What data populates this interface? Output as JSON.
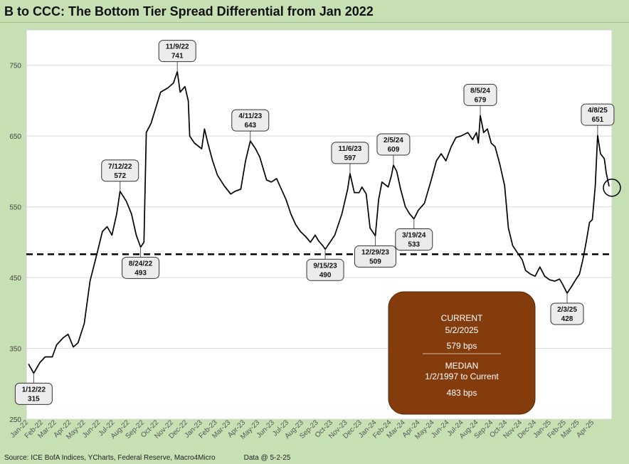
{
  "title": "B to CCC: The Bottom Tier Spread Differential from Jan 2022",
  "source": "Source: ICE BofA Indices, YCharts, Federal Reserve, Macro4Micro",
  "data_asof": "Data @ 5-2-25",
  "colors": {
    "background": "#c6e0b4",
    "plot_background": "#ffffff",
    "line": "#000000",
    "info_box": "#843c0c",
    "callout_fill": "#ececec"
  },
  "info_box": {
    "current_label": "CURRENT",
    "current_date": "5/2/2025",
    "current_value": "579 bps",
    "median_label": "MEDIAN",
    "median_period": "1/2/1997 to Current",
    "median_value": "483 bps"
  },
  "chart_data": {
    "type": "line",
    "title": "B to CCC: The Bottom Tier Spread Differential from Jan 2022",
    "xlabel": "",
    "ylabel": "",
    "ylim": [
      250,
      800
    ],
    "yticks": [
      250,
      350,
      450,
      550,
      650,
      750
    ],
    "grid": true,
    "x_tick_labels": [
      "Jan-22",
      "Feb-22",
      "Mar-22",
      "Apr-22",
      "May-22",
      "Jun-22",
      "Jul-22",
      "Aug-22",
      "Sep-22",
      "Oct-22",
      "Nov-22",
      "Dec-22",
      "Jan-23",
      "Feb-23",
      "Mar-23",
      "Apr-23",
      "May-23",
      "Jun-23",
      "Jul-23",
      "Aug-23",
      "Sep-23",
      "Oct-23",
      "Nov-23",
      "Dec-23",
      "Jan-24",
      "Feb-24",
      "Mar-24",
      "Apr-24",
      "May-24",
      "Jun-24",
      "Jul-24",
      "Aug-24",
      "Sep-24",
      "Oct-24",
      "Nov-24",
      "Dec-24",
      "Jan-25",
      "Feb-25",
      "Mar-25",
      "Apr-25"
    ],
    "median": 483,
    "series": [
      {
        "points": [
          [
            "2022-01-01",
            328
          ],
          [
            "2022-01-12",
            315
          ],
          [
            "2022-01-25",
            330
          ],
          [
            "2022-02-05",
            338
          ],
          [
            "2022-02-20",
            338
          ],
          [
            "2022-03-01",
            355
          ],
          [
            "2022-03-15",
            365
          ],
          [
            "2022-03-25",
            370
          ],
          [
            "2022-04-05",
            352
          ],
          [
            "2022-04-15",
            358
          ],
          [
            "2022-04-28",
            385
          ],
          [
            "2022-05-10",
            445
          ],
          [
            "2022-05-25",
            485
          ],
          [
            "2022-06-05",
            515
          ],
          [
            "2022-06-15",
            522
          ],
          [
            "2022-06-25",
            510
          ],
          [
            "2022-07-05",
            540
          ],
          [
            "2022-07-12",
            572
          ],
          [
            "2022-07-25",
            558
          ],
          [
            "2022-08-05",
            540
          ],
          [
            "2022-08-15",
            510
          ],
          [
            "2022-08-24",
            493
          ],
          [
            "2022-08-31",
            500
          ],
          [
            "2022-09-05",
            655
          ],
          [
            "2022-09-15",
            668
          ],
          [
            "2022-09-25",
            690
          ],
          [
            "2022-10-05",
            712
          ],
          [
            "2022-10-20",
            718
          ],
          [
            "2022-11-01",
            725
          ],
          [
            "2022-11-09",
            741
          ],
          [
            "2022-11-15",
            712
          ],
          [
            "2022-11-25",
            720
          ],
          [
            "2022-12-02",
            700
          ],
          [
            "2022-12-05",
            650
          ],
          [
            "2022-12-15",
            640
          ],
          [
            "2022-12-30",
            632
          ],
          [
            "2023-01-05",
            660
          ],
          [
            "2023-01-12",
            640
          ],
          [
            "2023-01-22",
            615
          ],
          [
            "2023-02-01",
            595
          ],
          [
            "2023-02-15",
            580
          ],
          [
            "2023-03-01",
            568
          ],
          [
            "2023-03-10",
            572
          ],
          [
            "2023-03-22",
            575
          ],
          [
            "2023-04-01",
            615
          ],
          [
            "2023-04-11",
            643
          ],
          [
            "2023-04-22",
            632
          ],
          [
            "2023-05-01",
            620
          ],
          [
            "2023-05-15",
            588
          ],
          [
            "2023-05-25",
            585
          ],
          [
            "2023-06-05",
            590
          ],
          [
            "2023-06-15",
            575
          ],
          [
            "2023-06-25",
            560
          ],
          [
            "2023-07-05",
            540
          ],
          [
            "2023-07-15",
            525
          ],
          [
            "2023-07-25",
            515
          ],
          [
            "2023-08-05",
            508
          ],
          [
            "2023-08-15",
            500
          ],
          [
            "2023-08-25",
            510
          ],
          [
            "2023-09-01",
            502
          ],
          [
            "2023-09-10",
            495
          ],
          [
            "2023-09-15",
            490
          ],
          [
            "2023-09-25",
            500
          ],
          [
            "2023-10-05",
            510
          ],
          [
            "2023-10-20",
            540
          ],
          [
            "2023-11-01",
            575
          ],
          [
            "2023-11-06",
            597
          ],
          [
            "2023-11-15",
            570
          ],
          [
            "2023-11-25",
            570
          ],
          [
            "2023-12-01",
            578
          ],
          [
            "2023-12-10",
            568
          ],
          [
            "2023-12-18",
            520
          ],
          [
            "2023-12-29",
            509
          ],
          [
            "2024-01-05",
            560
          ],
          [
            "2024-01-12",
            585
          ],
          [
            "2024-01-25",
            578
          ],
          [
            "2024-02-01",
            595
          ],
          [
            "2024-02-05",
            609
          ],
          [
            "2024-02-12",
            600
          ],
          [
            "2024-02-20",
            575
          ],
          [
            "2024-03-01",
            550
          ],
          [
            "2024-03-10",
            540
          ],
          [
            "2024-03-19",
            533
          ],
          [
            "2024-03-28",
            545
          ],
          [
            "2024-04-10",
            555
          ],
          [
            "2024-04-25",
            590
          ],
          [
            "2024-05-05",
            615
          ],
          [
            "2024-05-15",
            625
          ],
          [
            "2024-05-25",
            615
          ],
          [
            "2024-06-05",
            635
          ],
          [
            "2024-06-15",
            648
          ],
          [
            "2024-06-25",
            650
          ],
          [
            "2024-07-10",
            655
          ],
          [
            "2024-07-20",
            645
          ],
          [
            "2024-07-28",
            655
          ],
          [
            "2024-08-01",
            640
          ],
          [
            "2024-08-05",
            679
          ],
          [
            "2024-08-12",
            655
          ],
          [
            "2024-08-20",
            660
          ],
          [
            "2024-08-28",
            640
          ],
          [
            "2024-09-05",
            635
          ],
          [
            "2024-09-15",
            610
          ],
          [
            "2024-09-25",
            580
          ],
          [
            "2024-10-03",
            520
          ],
          [
            "2024-10-12",
            495
          ],
          [
            "2024-10-22",
            485
          ],
          [
            "2024-11-01",
            475
          ],
          [
            "2024-11-08",
            460
          ],
          [
            "2024-11-18",
            455
          ],
          [
            "2024-11-28",
            452
          ],
          [
            "2024-12-08",
            465
          ],
          [
            "2024-12-18",
            452
          ],
          [
            "2024-12-28",
            447
          ],
          [
            "2025-01-08",
            445
          ],
          [
            "2025-01-18",
            448
          ],
          [
            "2025-01-25",
            440
          ],
          [
            "2025-02-03",
            428
          ],
          [
            "2025-02-12",
            437
          ],
          [
            "2025-02-22",
            448
          ],
          [
            "2025-03-01",
            455
          ],
          [
            "2025-03-08",
            475
          ],
          [
            "2025-03-15",
            500
          ],
          [
            "2025-03-22",
            528
          ],
          [
            "2025-03-28",
            532
          ],
          [
            "2025-04-03",
            580
          ],
          [
            "2025-04-08",
            651
          ],
          [
            "2025-04-14",
            625
          ],
          [
            "2025-04-22",
            618
          ],
          [
            "2025-04-26",
            598
          ],
          [
            "2025-05-02",
            579
          ]
        ]
      }
    ],
    "annotations": [
      {
        "label": "1/12/22",
        "value": "315"
      },
      {
        "label": "7/12/22",
        "value": "572"
      },
      {
        "label": "8/24/22",
        "value": "493"
      },
      {
        "label": "11/9/22",
        "value": "741"
      },
      {
        "label": "4/11/23",
        "value": "643"
      },
      {
        "label": "9/15/23",
        "value": "490"
      },
      {
        "label": "11/6/23",
        "value": "597"
      },
      {
        "label": "12/29/23",
        "value": "509"
      },
      {
        "label": "2/5/24",
        "value": "609"
      },
      {
        "label": "3/19/24",
        "value": "533"
      },
      {
        "label": "8/5/24",
        "value": "679"
      },
      {
        "label": "2/3/25",
        "value": "428"
      },
      {
        "label": "4/8/25",
        "value": "651"
      }
    ]
  }
}
